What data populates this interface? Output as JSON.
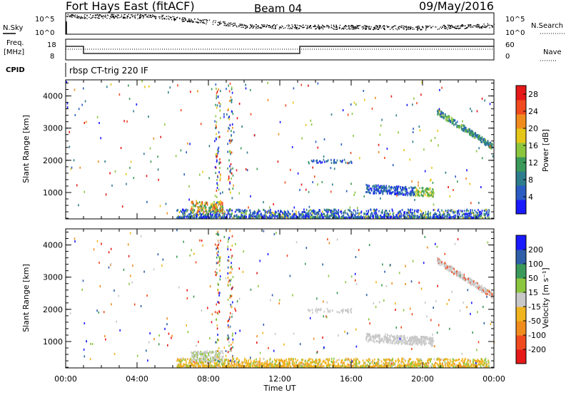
{
  "header": {
    "station": "Fort Hays East (fitACF)",
    "beam": "Beam 04",
    "date": "09/May/2016",
    "program": "rbsp CT-trig 220 IF"
  },
  "strips": {
    "nsky_label": "N.Sky",
    "nsearch_label": "N.Search",
    "freq_label_1": "Freq.",
    "freq_label_2": "[MHz]",
    "nave_label": "Nave",
    "cpid_label": "CPID",
    "nsky_ticks": [
      "10^5",
      "10^0"
    ],
    "nsearch_ticks": [
      "10^5",
      "10^0"
    ],
    "freq_ticks": [
      "18",
      "8"
    ],
    "nave_ticks": [
      "60",
      "0"
    ]
  },
  "colors": {
    "power": [
      "#1a1aff",
      "#2a5cc4",
      "#2e7d8c",
      "#3b9a5a",
      "#8cc63f",
      "#e6c619",
      "#f08c1e",
      "#f04a1e",
      "#e61919"
    ],
    "velocity": [
      "#e61919",
      "#f04a1e",
      "#f08c1e",
      "#f0b41e",
      "#c8c8c8",
      "#8cc63f",
      "#3b9a5a",
      "#2e5fa8",
      "#1a1aff"
    ],
    "ground_scatter": "#c8c8c8"
  },
  "chart_data": [
    {
      "type": "heatmap",
      "title": "Power",
      "xlabel": "",
      "ylabel": "Slant Range [km]",
      "xlim": [
        "00:00",
        "00:00"
      ],
      "x_ticks": [
        "00:00",
        "04:00",
        "08:00",
        "12:00",
        "16:00",
        "20:00",
        "00:00"
      ],
      "ylim": [
        180,
        4500
      ],
      "y_ticks": [
        1000,
        2000,
        3000,
        4000
      ],
      "colorbar": {
        "label": "Power [dB]",
        "ticks": [
          4,
          8,
          12,
          16,
          20,
          24,
          28
        ],
        "range": [
          0,
          30
        ]
      }
    },
    {
      "type": "heatmap",
      "title": "Velocity",
      "xlabel": "Time UT",
      "ylabel": "Slant Range [km]",
      "xlim": [
        "00:00",
        "00:00"
      ],
      "x_ticks": [
        "00:00",
        "04:00",
        "08:00",
        "12:00",
        "16:00",
        "20:00",
        "00:00"
      ],
      "ylim": [
        180,
        4500
      ],
      "y_ticks": [
        1000,
        2000,
        3000,
        4000
      ],
      "colorbar": {
        "label": "Velocity [m s⁻¹]",
        "ticks": [
          200,
          100,
          50,
          15,
          -15,
          -50,
          -100,
          -200
        ]
      }
    }
  ]
}
